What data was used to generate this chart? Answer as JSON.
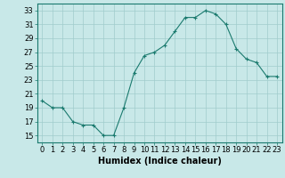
{
  "x": [
    0,
    1,
    2,
    3,
    4,
    5,
    6,
    7,
    8,
    9,
    10,
    11,
    12,
    13,
    14,
    15,
    16,
    17,
    18,
    19,
    20,
    21,
    22,
    23
  ],
  "y": [
    20.0,
    19.0,
    19.0,
    17.0,
    16.5,
    16.5,
    15.0,
    15.0,
    19.0,
    24.0,
    26.5,
    27.0,
    28.0,
    30.0,
    32.0,
    32.0,
    33.0,
    32.5,
    31.0,
    27.5,
    26.0,
    25.5,
    23.5,
    23.5
  ],
  "line_color": "#1a7a6e",
  "marker": "+",
  "bg_color": "#c8e8e8",
  "grid_color": "#a0cccc",
  "xlabel": "Humidex (Indice chaleur)",
  "ylim": [
    14,
    34
  ],
  "xlim": [
    -0.5,
    23.5
  ],
  "yticks": [
    15,
    17,
    19,
    21,
    23,
    25,
    27,
    29,
    31,
    33
  ],
  "xtick_labels": [
    "0",
    "1",
    "2",
    "3",
    "4",
    "5",
    "6",
    "7",
    "8",
    "9",
    "10",
    "11",
    "12",
    "13",
    "14",
    "15",
    "16",
    "17",
    "18",
    "19",
    "20",
    "21",
    "22",
    "23"
  ],
  "label_fontsize": 7,
  "tick_fontsize": 6
}
